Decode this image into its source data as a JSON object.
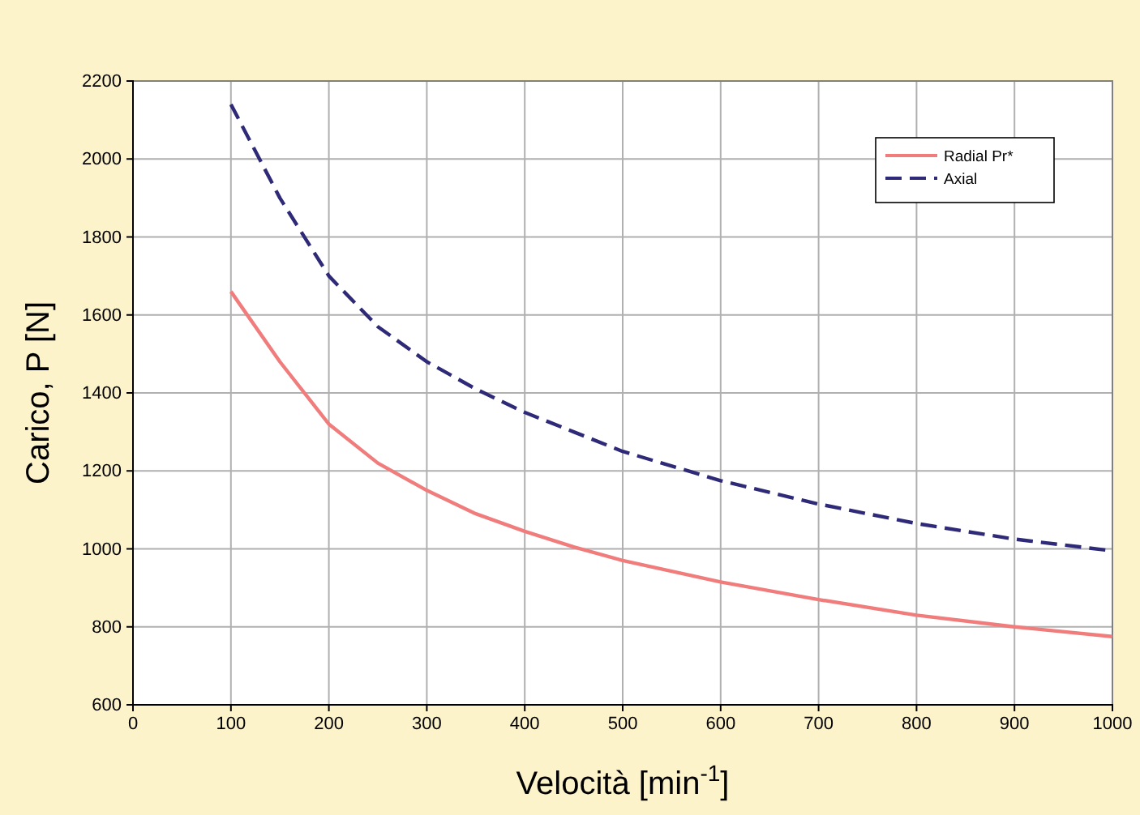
{
  "chart_data": {
    "type": "line",
    "xlabel": "Velocità [min$^{-1}$]",
    "ylabel": "Carico, P [N]",
    "x": [
      100,
      150,
      200,
      250,
      300,
      350,
      400,
      450,
      500,
      600,
      700,
      800,
      900,
      1000
    ],
    "series": [
      {
        "name": "Radial Pr*",
        "color": "#f07c7c",
        "line_style": "solid",
        "values": [
          1660,
          1480,
          1320,
          1220,
          1150,
          1090,
          1045,
          1005,
          970,
          915,
          870,
          830,
          800,
          775
        ]
      },
      {
        "name": "Axial",
        "color": "#2e2a78",
        "line_style": "dashed",
        "values": [
          2140,
          1900,
          1700,
          1570,
          1480,
          1410,
          1350,
          1300,
          1250,
          1175,
          1115,
          1065,
          1025,
          995
        ]
      }
    ],
    "xlim": [
      0,
      1000
    ],
    "xticks": [
      0,
      100,
      200,
      300,
      400,
      500,
      600,
      700,
      800,
      900,
      1000
    ],
    "ylim": [
      600,
      2200
    ],
    "yticks": [
      600,
      800,
      1000,
      1200,
      1400,
      1600,
      1800,
      2000,
      2200
    ],
    "grid": true,
    "legend": "top right",
    "marker": "none"
  }
}
